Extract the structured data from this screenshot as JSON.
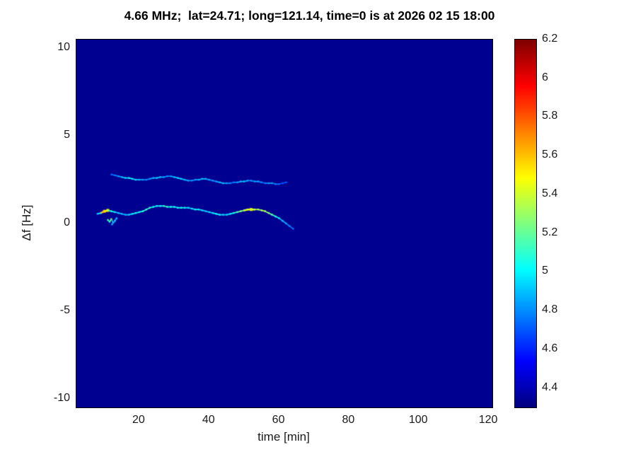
{
  "chart_data": {
    "type": "heatmap",
    "title": "4.66 MHz;  lat=24.71; long=121.14, time=0 is at 2026 02 15 18:00",
    "xlabel": "time [min]",
    "ylabel": "Δf [Hz]",
    "xlim": [
      2,
      121
    ],
    "ylim": [
      -10.5,
      10.5
    ],
    "xticks": [
      20,
      40,
      60,
      80,
      100,
      120
    ],
    "yticks": [
      -10,
      -5,
      0,
      5,
      10
    ],
    "grid": false,
    "colormap": "jet",
    "clim": [
      4.3,
      6.2
    ],
    "colorbar_ticks": [
      4.4,
      4.6,
      4.8,
      5,
      5.2,
      5.4,
      5.6,
      5.8,
      6,
      6.2
    ],
    "background_value": 4.33,
    "series": [
      {
        "name": "lower-doppler-trace",
        "x": [
          8,
          9,
          10,
          11,
          12,
          13,
          14,
          15,
          16,
          17,
          18,
          19,
          20,
          21,
          22,
          23,
          24,
          25,
          26,
          27,
          28,
          29,
          30,
          31,
          32,
          33,
          34,
          35,
          36,
          37,
          38,
          39,
          40,
          41,
          42,
          43,
          44,
          45,
          46,
          47,
          48,
          49,
          50,
          51,
          52,
          53,
          54,
          55,
          56,
          57,
          58,
          59,
          60,
          61,
          62,
          63,
          64
        ],
        "y": [
          0.55,
          0.6,
          0.7,
          0.75,
          0.7,
          0.65,
          0.6,
          0.55,
          0.5,
          0.5,
          0.55,
          0.6,
          0.65,
          0.7,
          0.8,
          0.9,
          0.95,
          1.0,
          1.0,
          1.0,
          0.95,
          0.95,
          0.95,
          0.9,
          0.9,
          0.9,
          0.9,
          0.85,
          0.8,
          0.8,
          0.75,
          0.7,
          0.65,
          0.6,
          0.55,
          0.5,
          0.5,
          0.5,
          0.55,
          0.6,
          0.65,
          0.7,
          0.75,
          0.8,
          0.8,
          0.8,
          0.8,
          0.75,
          0.7,
          0.6,
          0.5,
          0.4,
          0.3,
          0.15,
          0.0,
          -0.15,
          -0.3
        ],
        "v": [
          4.8,
          5.0,
          5.6,
          5.5,
          5.1,
          5.0,
          4.9,
          4.9,
          4.85,
          4.9,
          4.95,
          5.0,
          5.0,
          5.05,
          5.1,
          5.1,
          5.05,
          5.0,
          5.0,
          5.05,
          5.1,
          5.05,
          5.0,
          5.0,
          5.05,
          5.0,
          4.95,
          4.95,
          5.0,
          5.0,
          4.95,
          4.9,
          4.9,
          4.95,
          5.0,
          5.0,
          4.95,
          4.9,
          4.95,
          5.0,
          5.1,
          5.2,
          5.3,
          5.4,
          5.45,
          5.4,
          5.35,
          5.3,
          5.35,
          5.3,
          5.2,
          5.1,
          5.0,
          4.9,
          4.85,
          4.8,
          4.75
        ]
      },
      {
        "name": "upper-doppler-trace",
        "x": [
          12,
          13,
          14,
          15,
          16,
          17,
          18,
          19,
          20,
          21,
          22,
          23,
          24,
          25,
          26,
          27,
          28,
          29,
          30,
          31,
          32,
          33,
          34,
          35,
          36,
          37,
          38,
          39,
          40,
          41,
          42,
          43,
          44,
          45,
          46,
          47,
          48,
          49,
          50,
          51,
          52,
          53,
          54,
          55,
          56,
          57,
          58,
          59,
          60,
          61,
          62
        ],
        "y": [
          2.8,
          2.75,
          2.7,
          2.65,
          2.6,
          2.6,
          2.55,
          2.5,
          2.5,
          2.5,
          2.5,
          2.55,
          2.6,
          2.6,
          2.65,
          2.65,
          2.7,
          2.7,
          2.65,
          2.6,
          2.55,
          2.5,
          2.45,
          2.45,
          2.5,
          2.5,
          2.55,
          2.55,
          2.5,
          2.45,
          2.4,
          2.35,
          2.3,
          2.3,
          2.3,
          2.35,
          2.35,
          2.4,
          2.4,
          2.45,
          2.45,
          2.4,
          2.4,
          2.35,
          2.3,
          2.3,
          2.3,
          2.25,
          2.25,
          2.3,
          2.35
        ],
        "v": [
          4.7,
          4.75,
          4.8,
          4.85,
          4.9,
          4.95,
          5.0,
          4.95,
          4.9,
          4.85,
          4.8,
          4.8,
          4.85,
          4.9,
          4.9,
          4.85,
          4.8,
          4.8,
          4.85,
          4.9,
          4.95,
          4.9,
          4.85,
          4.8,
          4.8,
          4.85,
          4.9,
          4.9,
          4.85,
          4.8,
          4.8,
          4.85,
          4.9,
          4.85,
          4.8,
          4.75,
          4.8,
          4.85,
          4.9,
          4.85,
          4.8,
          4.8,
          4.85,
          4.8,
          4.75,
          4.8,
          4.85,
          4.8,
          4.75,
          4.7,
          4.7
        ]
      },
      {
        "name": "near-zero-speckle",
        "x": [
          11,
          11.5,
          12,
          12.5,
          13,
          13.5,
          12.2
        ],
        "y": [
          0.2,
          0.1,
          0.25,
          0.05,
          0.15,
          0.3,
          -0.05
        ],
        "v": [
          5.2,
          5.0,
          5.3,
          4.9,
          5.1,
          4.9,
          4.85
        ]
      }
    ]
  }
}
